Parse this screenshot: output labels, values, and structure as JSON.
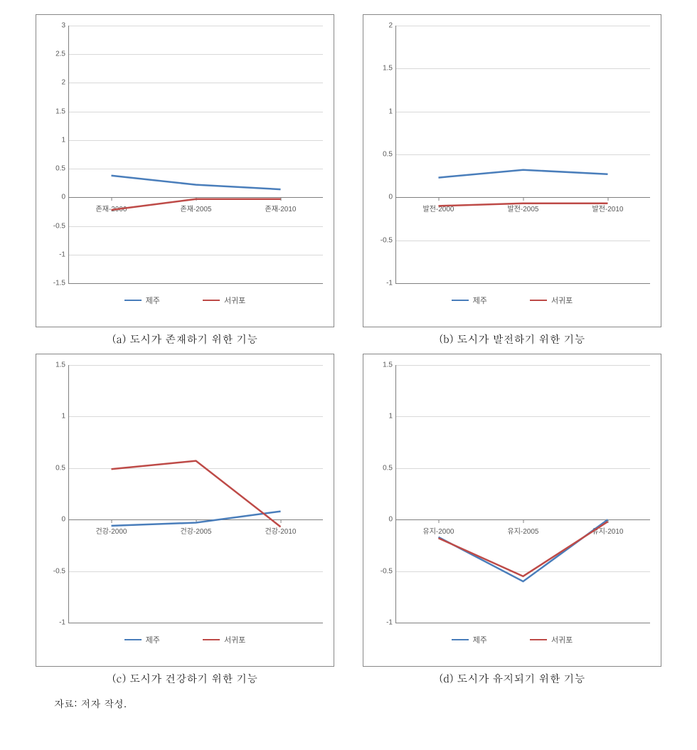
{
  "colors": {
    "series1": "#4a7ebb",
    "series2": "#be4b48",
    "grid": "#d9d9d9",
    "axis": "#808080",
    "text": "#595959",
    "background": "#ffffff"
  },
  "line_width": 2.5,
  "font_sizes": {
    "tick": 10,
    "legend": 11,
    "caption": 15,
    "source": 14
  },
  "series_names": {
    "s1": "제주",
    "s2": "서귀포"
  },
  "charts": [
    {
      "id": "a",
      "caption": "(a) 도시가 존재하기 위한 기능",
      "ylim": [
        -1.5,
        3
      ],
      "ytick_step": 0.5,
      "x_labels": [
        "존재-2000",
        "존재-2005",
        "존재-2010"
      ],
      "s1": [
        0.38,
        0.22,
        0.14
      ],
      "s2": [
        -0.22,
        -0.03,
        -0.03
      ]
    },
    {
      "id": "b",
      "caption": "(b) 도시가 발전하기 위한 기능",
      "ylim": [
        -1,
        2
      ],
      "ytick_step": 0.5,
      "x_labels": [
        "발전-2000",
        "발전-2005",
        "발전-2010"
      ],
      "s1": [
        0.23,
        0.32,
        0.27
      ],
      "s2": [
        -0.1,
        -0.07,
        -0.07
      ]
    },
    {
      "id": "c",
      "caption": "(c) 도시가 건강하기 위한 기능",
      "ylim": [
        -1,
        1.5
      ],
      "ytick_step": 0.5,
      "x_labels": [
        "건강-2000",
        "건강-2005",
        "건강-2010"
      ],
      "s1": [
        -0.06,
        -0.03,
        0.08
      ],
      "s2": [
        0.49,
        0.57,
        -0.07
      ]
    },
    {
      "id": "d",
      "caption": "(d) 도시가 유지되기 위한 기능",
      "ylim": [
        -1,
        1.5
      ],
      "ytick_step": 0.5,
      "x_labels": [
        "유지-2000",
        "유지-2005",
        "유지-2010"
      ],
      "s1": [
        -0.17,
        -0.6,
        0.0
      ],
      "s2": [
        -0.18,
        -0.55,
        -0.02
      ]
    }
  ],
  "source_label": "자료: 저자 작성."
}
